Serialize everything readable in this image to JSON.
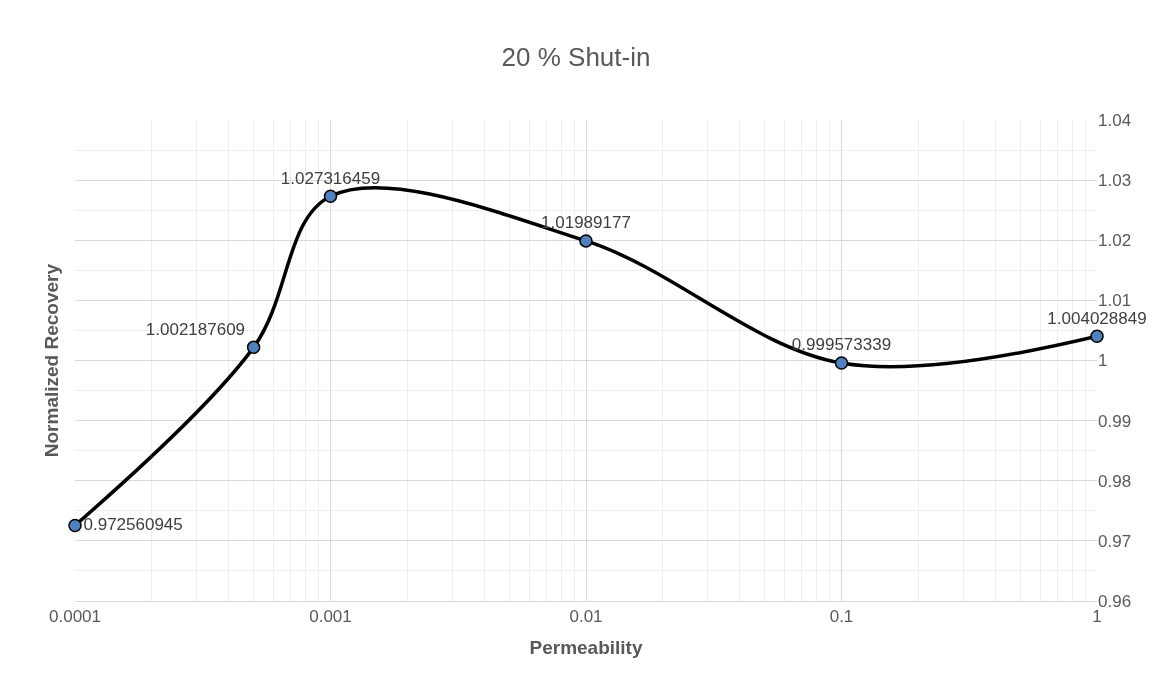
{
  "chart_data": {
    "type": "line",
    "title": "20 % Shut-in",
    "xlabel": "Permeability",
    "ylabel": "Normalized Recovery",
    "x": [
      0.0001,
      0.0005,
      0.001,
      0.01,
      0.1,
      1
    ],
    "series": [
      {
        "color": "#000000",
        "values": [
          0.972560945,
          1.002187609,
          1.027316459,
          1.01989177,
          0.999573339,
          1.004028849
        ]
      }
    ],
    "log": "x",
    "xlim": [
      0.0001,
      1
    ],
    "xticks": [
      0.0001,
      0.001,
      0.01,
      0.1,
      1
    ],
    "ylim": [
      0.96,
      1.04
    ],
    "yticks": [
      0.96,
      0.97,
      0.98,
      0.99,
      1,
      1.01,
      1.02,
      1.03,
      1.04
    ],
    "grid": true,
    "marker": "circle",
    "line_style": "solid",
    "data_labels": true,
    "legend": false
  }
}
